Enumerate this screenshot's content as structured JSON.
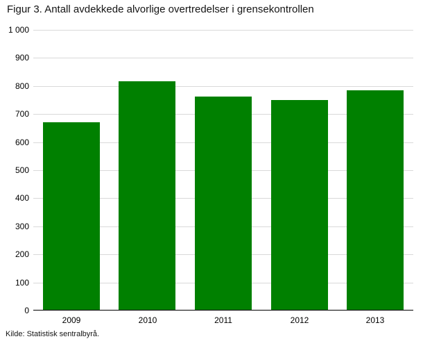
{
  "title": "Figur 3. Antall avdekkede alvorlige overtredelser i grensekontrollen",
  "source": "Kilde: Statistisk sentralbyrå.",
  "chart_data": {
    "type": "bar",
    "title": "Figur 3. Antall avdekkede alvorlige overtredelser i grensekontrollen",
    "categories": [
      "2009",
      "2010",
      "2011",
      "2012",
      "2013"
    ],
    "values": [
      672,
      818,
      762,
      750,
      785
    ],
    "xlabel": "",
    "ylabel": "",
    "ylim": [
      0,
      1000
    ],
    "ytick_interval": 100,
    "ytick_labels": [
      "0",
      "100",
      "200",
      "300",
      "400",
      "500",
      "600",
      "700",
      "800",
      "900",
      "1 000"
    ],
    "grid": true,
    "legend_position": "none",
    "bar_color": "#008000",
    "source": "Kilde: Statistisk sentralbyrå."
  }
}
